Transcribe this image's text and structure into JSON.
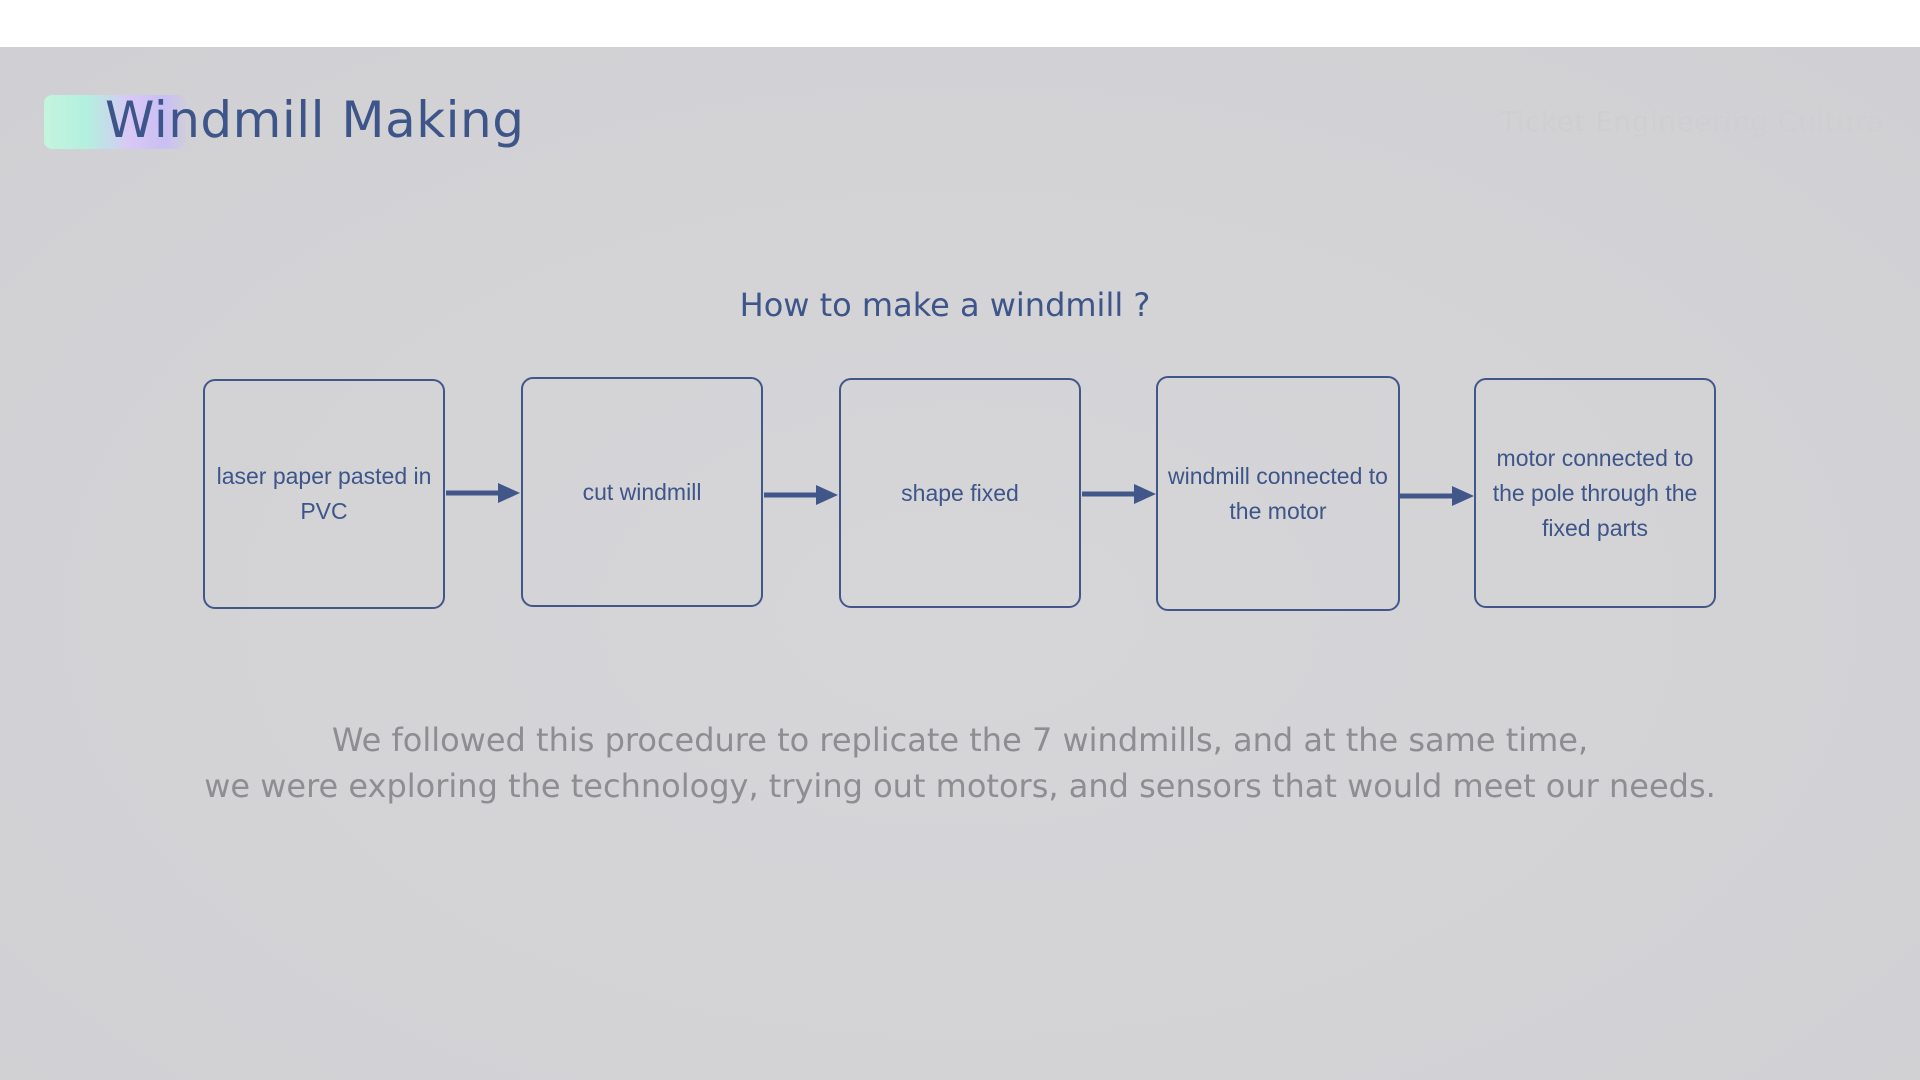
{
  "slide": {
    "title": "Windmill Making",
    "watermark": "Ticket Engineering Cultura"
  },
  "flowchart": {
    "title": "How to make a windmill ?",
    "steps": [
      {
        "label": "laser paper pasted in PVC"
      },
      {
        "label": "cut windmill"
      },
      {
        "label": "shape fixed"
      },
      {
        "label": "windmill connected to the motor"
      },
      {
        "label": "motor connected to the pole through the fixed parts"
      }
    ]
  },
  "caption": {
    "line1": "We followed this procedure to replicate the 7 windmills, and at the same time,",
    "line2": "we were exploring the technology, trying out motors, and sensors that would meet our needs."
  },
  "colors": {
    "accent": "#3d5589",
    "caption": "#8e8e92",
    "background": "#d4d4d7"
  }
}
